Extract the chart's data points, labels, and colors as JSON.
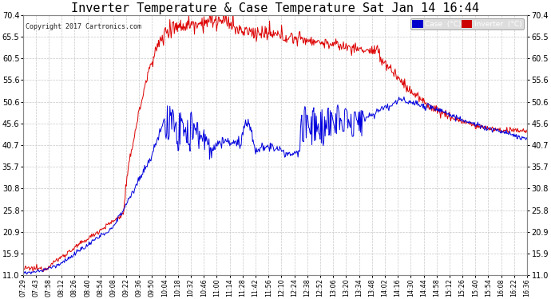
{
  "title": "Inverter Temperature & Case Temperature Sat Jan 14 16:44",
  "copyright": "Copyright 2017 Cartronics.com",
  "yticks": [
    11.0,
    15.9,
    20.9,
    25.8,
    30.8,
    35.7,
    40.7,
    45.6,
    50.6,
    55.6,
    60.5,
    65.5,
    70.4
  ],
  "ylim": [
    11.0,
    70.4
  ],
  "xtick_labels": [
    "07:29",
    "07:43",
    "07:58",
    "08:12",
    "08:26",
    "08:40",
    "08:54",
    "09:08",
    "09:22",
    "09:36",
    "09:50",
    "10:04",
    "10:18",
    "10:32",
    "10:46",
    "11:00",
    "11:14",
    "11:28",
    "11:42",
    "11:56",
    "12:10",
    "12:24",
    "12:38",
    "12:52",
    "13:06",
    "13:20",
    "13:34",
    "13:48",
    "14:02",
    "14:16",
    "14:30",
    "14:44",
    "14:58",
    "15:12",
    "15:26",
    "15:40",
    "15:54",
    "16:08",
    "16:22",
    "16:36"
  ],
  "bg_color": "#ffffff",
  "grid_color": "#c8c8c8",
  "case_color": "#0000dd",
  "inverter_color": "#dd0000",
  "title_fontsize": 11,
  "legend_case_bg": "#0000cc",
  "legend_inv_bg": "#cc0000",
  "legend_text_color": "#ffffff"
}
